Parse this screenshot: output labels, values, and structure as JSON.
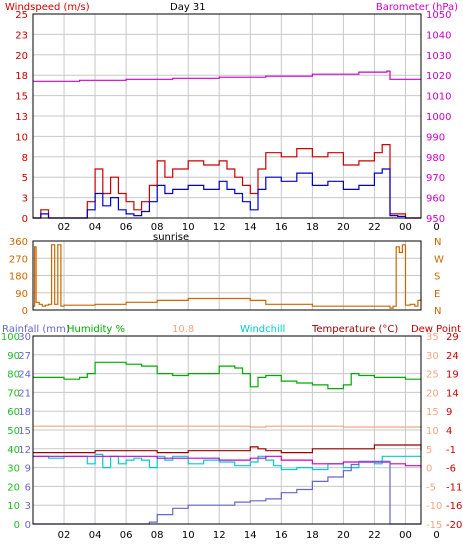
{
  "colors": {
    "red": "#cc0000",
    "blue": "#0000cc",
    "magenta": "#cc00cc",
    "orange": "#cc6600",
    "green": "#00aa00",
    "cyan": "#00cccc",
    "salmon": "#f4a582",
    "darkred": "#990000",
    "rain": "#6666cc",
    "humidity_axis": "#22bb22",
    "dewpoint_axis": "#cc0000",
    "grid": "#c8c8c8",
    "frame": "#000000"
  },
  "hours": [
    "02",
    "04",
    "06",
    "08",
    "10",
    "12",
    "14",
    "16",
    "18",
    "20",
    "22",
    "00",
    "0"
  ],
  "chart_data": [
    {
      "type": "line",
      "title": "Day 31",
      "left_label": "Windspeed (m/s)",
      "right_label": "Barometer (hPa)",
      "left_ticks": [
        "25",
        "23",
        "20",
        "18",
        "15",
        "13",
        "10",
        "8",
        "5",
        "3",
        "0"
      ],
      "right_ticks": [
        "1050",
        "1040",
        "1030",
        "1020",
        "1010",
        "1000",
        "990",
        "980",
        "970",
        "960",
        "950"
      ],
      "left_range": [
        0,
        25
      ],
      "right_range": [
        950,
        1050
      ],
      "x_range": [
        0,
        25
      ],
      "grid": true,
      "series": [
        {
          "key": "barometer",
          "axis": "right",
          "color": "magenta",
          "x": [
            0,
            3,
            6,
            9,
            12,
            15,
            18,
            21,
            22.8,
            23,
            25
          ],
          "y": [
            1017,
            1017.5,
            1018,
            1018.5,
            1019,
            1019.5,
            1020.5,
            1021.5,
            1022,
            1018,
            1018
          ]
        },
        {
          "key": "gust",
          "axis": "left",
          "color": "red",
          "x": [
            0,
            0.5,
            1,
            1.5,
            2,
            3,
            3.5,
            4,
            4.5,
            5,
            5.5,
            6,
            6.5,
            7,
            7.5,
            8,
            8.5,
            9,
            10,
            11,
            12,
            12.5,
            13,
            13.5,
            14,
            14.5,
            15,
            16,
            17,
            18,
            19,
            20,
            21,
            22,
            22.5,
            23,
            23.5,
            24,
            25
          ],
          "y": [
            0,
            1,
            0,
            0,
            0,
            0,
            2,
            6,
            3,
            5,
            3,
            2,
            1,
            2,
            4,
            7,
            5,
            6,
            7,
            6.5,
            7,
            6,
            5,
            4,
            3,
            6,
            8,
            7.5,
            8.5,
            7.5,
            8,
            6.5,
            7,
            8,
            9,
            0.5,
            0.5,
            0,
            0
          ]
        },
        {
          "key": "wind",
          "axis": "left",
          "color": "blue",
          "x": [
            0,
            0.5,
            1,
            1.5,
            2,
            3,
            3.5,
            4,
            4.5,
            5,
            5.5,
            6,
            6.5,
            7,
            7.5,
            8,
            8.5,
            9,
            10,
            11,
            12,
            12.5,
            13,
            13.5,
            14,
            14.5,
            15,
            16,
            17,
            18,
            19,
            20,
            21,
            22,
            22.5,
            23,
            23.5,
            24,
            25
          ],
          "y": [
            0,
            0.5,
            0,
            0,
            0,
            0,
            1,
            3,
            1.5,
            2.5,
            1,
            0.5,
            0.3,
            0.8,
            2,
            4,
            3,
            3.5,
            4,
            3.5,
            4.5,
            3.5,
            3,
            2,
            1,
            3.5,
            5,
            4.5,
            5.5,
            4,
            4.5,
            3.5,
            4,
            5.5,
            6,
            0.3,
            0.2,
            0,
            0
          ]
        }
      ]
    },
    {
      "type": "line",
      "left_ticks": [
        "360",
        "270",
        "180",
        "90",
        "0"
      ],
      "right_ticks": [
        "N",
        "W",
        "S",
        "E",
        "N"
      ],
      "left_range": [
        0,
        360
      ],
      "x_range": [
        0,
        25
      ],
      "grid": true,
      "series": [
        {
          "key": "direction",
          "axis": "left",
          "color": "orange",
          "x": [
            0,
            0.1,
            0.2,
            0.4,
            0.6,
            0.8,
            1,
            1.2,
            1.4,
            1.6,
            1.8,
            2,
            4,
            6,
            8,
            10,
            12,
            14,
            15,
            16,
            18,
            20,
            21,
            22,
            23,
            23.2,
            23.4,
            23.6,
            23.8,
            24,
            24.3,
            24.6,
            24.8,
            25
          ],
          "y": [
            20,
            330,
            40,
            30,
            20,
            25,
            30,
            340,
            30,
            340,
            20,
            25,
            30,
            40,
            50,
            60,
            60,
            50,
            30,
            30,
            20,
            20,
            20,
            20,
            10,
            20,
            330,
            300,
            340,
            25,
            30,
            20,
            50,
            60
          ]
        }
      ]
    },
    {
      "type": "line",
      "header": {
        "rainfall": "Rainfall (mm)",
        "humidity": "Humidity %",
        "value": "10.8",
        "windchill": "Windchill",
        "temperature": "Temperature (°C)",
        "dewpoint": "Dew Point"
      },
      "rain_ticks": [
        "30",
        "27",
        "24",
        "21",
        "18",
        "15",
        "12",
        "9",
        "6",
        "3",
        "0"
      ],
      "humidity_ticks": [
        "100",
        "90",
        "80",
        "70",
        "60",
        "50",
        "40",
        "30",
        "20",
        "10",
        "0"
      ],
      "temp_ticks": [
        "35",
        "30",
        "25",
        "20",
        "15",
        "10",
        "5",
        "0",
        "-5",
        "-10",
        "-15"
      ],
      "dew_ticks": [
        "29",
        "24",
        "19",
        "14",
        "9",
        "4",
        "-1",
        "-6",
        "-11",
        "-16",
        "-20"
      ],
      "rain_range": [
        0,
        30
      ],
      "humidity_range": [
        0,
        100
      ],
      "temp_range": [
        -15,
        35
      ],
      "x_range": [
        0,
        25
      ],
      "grid": true,
      "series": [
        {
          "key": "humidity",
          "axis": "humidity",
          "color": "green",
          "x": [
            0,
            1,
            2,
            3,
            3.5,
            4,
            5,
            6,
            7,
            8,
            9,
            10,
            11,
            12,
            13,
            13.5,
            14,
            14.5,
            15,
            16,
            17,
            18,
            19,
            20,
            20.5,
            21,
            22,
            23,
            24,
            25
          ],
          "y": [
            78,
            78,
            77,
            78,
            80,
            86,
            86,
            85,
            84,
            80,
            79,
            80,
            80,
            84,
            83,
            80,
            73,
            78,
            79,
            76,
            75,
            74,
            72,
            74,
            80,
            79,
            78,
            78,
            77,
            77
          ]
        },
        {
          "key": "temp_orange",
          "axis": "temp",
          "color": "salmon",
          "x": [
            0,
            5,
            10,
            14,
            15,
            20,
            25
          ],
          "y": [
            11,
            11,
            11,
            10.8,
            11,
            10.8,
            11
          ]
        },
        {
          "key": "temp_darkred",
          "axis": "temp",
          "color": "darkred",
          "x": [
            0,
            2,
            4,
            6,
            8,
            10,
            12,
            14,
            14.5,
            15,
            16,
            18,
            20,
            22,
            23,
            25
          ],
          "y": [
            4,
            4,
            4.5,
            4.5,
            4,
            4.5,
            4.5,
            5.5,
            5,
            4.5,
            4,
            5,
            5,
            6,
            6,
            4.5
          ]
        },
        {
          "key": "windchill",
          "axis": "temp",
          "color": "cyan",
          "x": [
            0,
            1,
            2,
            3,
            3.5,
            4,
            4.5,
            5,
            5.5,
            6,
            6.5,
            7,
            7.5,
            8,
            8.5,
            9,
            10,
            11,
            12,
            13,
            14,
            14.5,
            15,
            15.5,
            16,
            17,
            18,
            19,
            20,
            21,
            22,
            22.5,
            23,
            24,
            25
          ],
          "y": [
            3,
            2.5,
            3,
            3,
            1,
            3.5,
            0,
            3,
            1,
            2,
            2.5,
            2,
            0,
            3,
            2,
            3,
            1,
            2,
            1.5,
            0.5,
            1.5,
            3,
            2,
            0.5,
            -0.5,
            0,
            -0.5,
            1,
            0,
            1.5,
            1,
            3,
            3,
            3,
            3
          ]
        },
        {
          "key": "temperature",
          "axis": "temp",
          "color": "magenta",
          "x": [
            0,
            2,
            4,
            6,
            8,
            10,
            12,
            14,
            15,
            16,
            18,
            20,
            22,
            23,
            24,
            25
          ],
          "y": [
            3,
            3,
            3,
            3,
            2.5,
            2.5,
            2,
            2.5,
            3,
            2,
            1,
            1.5,
            1.5,
            1,
            0.5,
            0
          ]
        },
        {
          "key": "rainfall",
          "axis": "rain",
          "color": "rain",
          "x": [
            0,
            7,
            7.5,
            8,
            9,
            10,
            12,
            13,
            14,
            15,
            16,
            17,
            18,
            19,
            20,
            20.5,
            21,
            22,
            22.9,
            23,
            25
          ],
          "y": [
            0,
            0,
            0.3,
            1.5,
            2.5,
            3,
            3,
            3.5,
            3.7,
            4,
            5,
            5.5,
            6.8,
            7.5,
            8.5,
            9.5,
            10,
            10,
            10,
            0,
            0
          ]
        }
      ]
    }
  ],
  "sunrise_label": "sunrise"
}
